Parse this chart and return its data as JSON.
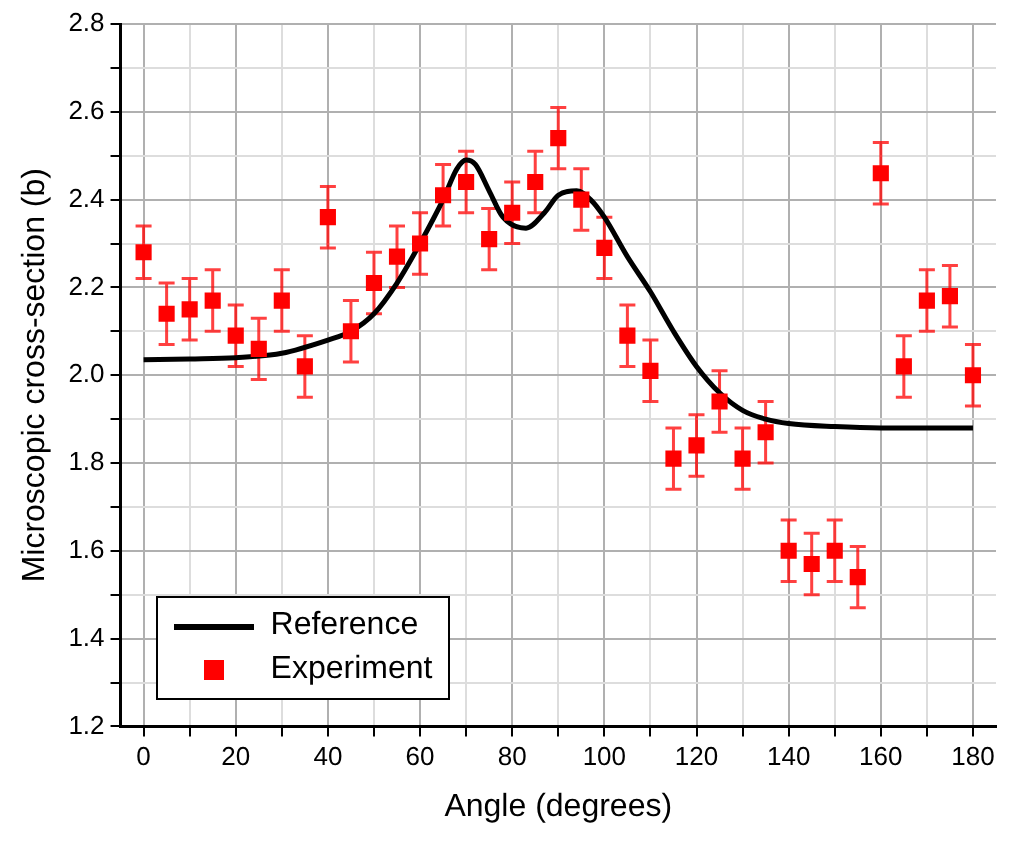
{
  "chart_data": {
    "type": "scatter",
    "xlabel": "Angle (degrees)",
    "ylabel": "Microscopic cross-section (b)",
    "xlim": [
      -5,
      185
    ],
    "xticks": [
      0,
      {
        "value": 10,
        "label": null
      },
      20,
      {
        "value": 30,
        "label": null
      },
      40,
      {
        "value": 50,
        "label": null
      },
      60,
      {
        "value": 70,
        "label": null
      },
      80,
      {
        "value": 90,
        "label": null
      },
      100,
      {
        "value": 110,
        "label": null
      },
      120,
      {
        "value": 130,
        "label": null
      },
      140,
      {
        "value": 150,
        "label": null
      },
      160,
      {
        "value": 170,
        "label": null
      },
      180
    ],
    "ylim": [
      1.2,
      2.8
    ],
    "yticks": [
      1.2,
      {
        "value": 1.3,
        "label": null
      },
      1.4,
      {
        "value": 1.5,
        "label": null
      },
      1.6,
      {
        "value": 1.7,
        "label": null
      },
      1.8,
      {
        "value": 1.9,
        "label": null
      },
      {
        "value": 2,
        "label": "2.0"
      },
      {
        "value": 2.1,
        "label": null
      },
      2.2,
      {
        "value": 2.3,
        "label": null
      },
      2.4,
      {
        "value": 2.5,
        "label": null
      },
      2.6,
      {
        "value": 2.7,
        "label": null
      },
      2.8
    ],
    "grid": true,
    "legend": "bottom left",
    "series": [
      {
        "name": "Reference",
        "type": "line",
        "color": "#000000",
        "marker": "none",
        "line_style": "solid",
        "x": [
          0,
          10,
          20,
          30,
          40,
          45,
          50,
          55,
          60,
          65,
          68,
          70,
          72,
          75,
          78,
          83,
          87,
          90,
          94,
          97,
          100,
          105,
          110,
          115,
          120,
          125,
          130,
          135,
          140,
          150,
          160,
          170,
          180
        ],
        "values": [
          2.035,
          2.037,
          2.04,
          2.05,
          2.08,
          2.1,
          2.14,
          2.21,
          2.3,
          2.4,
          2.47,
          2.49,
          2.48,
          2.42,
          2.36,
          2.335,
          2.37,
          2.41,
          2.42,
          2.4,
          2.36,
          2.27,
          2.19,
          2.1,
          2.02,
          1.96,
          1.92,
          1.9,
          1.89,
          1.883,
          1.88,
          1.88,
          1.88
        ]
      },
      {
        "name": "Experiment",
        "color": "#ff0000",
        "marker": "square",
        "x": [
          0,
          5,
          10,
          15,
          20,
          25,
          30,
          35,
          40,
          45,
          50,
          55,
          60,
          65,
          70,
          75,
          80,
          85,
          90,
          95,
          100,
          105,
          110,
          115,
          120,
          125,
          130,
          135,
          140,
          145,
          150,
          155,
          160,
          165,
          170,
          175,
          180
        ],
        "values": [
          2.28,
          2.14,
          2.15,
          2.17,
          2.09,
          2.06,
          2.17,
          2.02,
          2.36,
          2.1,
          2.21,
          2.27,
          2.3,
          2.41,
          2.44,
          2.31,
          2.37,
          2.44,
          2.54,
          2.4,
          2.29,
          2.09,
          2.01,
          1.81,
          1.84,
          1.94,
          1.81,
          1.87,
          1.6,
          1.57,
          1.6,
          1.54,
          2.46,
          2.02,
          2.17,
          2.18,
          2.0
        ],
        "errors": [
          0.06,
          0.07,
          0.07,
          0.07,
          0.07,
          0.07,
          0.07,
          0.07,
          0.07,
          0.07,
          0.07,
          0.07,
          0.07,
          0.07,
          0.07,
          0.07,
          0.07,
          0.07,
          0.07,
          0.07,
          0.07,
          0.07,
          0.07,
          0.07,
          0.07,
          0.07,
          0.07,
          0.07,
          0.07,
          0.07,
          0.07,
          0.07,
          0.07,
          0.07,
          0.07,
          0.07,
          0.07
        ]
      }
    ]
  }
}
